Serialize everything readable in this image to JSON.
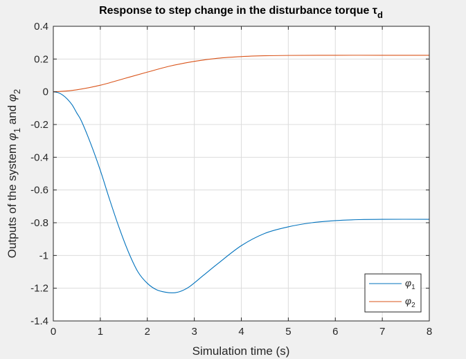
{
  "chart_data": {
    "type": "line",
    "title": "Response to step change in the disturbance torque τ",
    "title_subscript": "d",
    "xlabel": "Simulation time (s)",
    "ylabel_parts": [
      "Outputs of the system ",
      "φ",
      "1",
      " and ",
      "φ",
      "2"
    ],
    "xlim": [
      0,
      8
    ],
    "ylim": [
      -1.4,
      0.4
    ],
    "x_ticks": [
      0,
      1,
      2,
      3,
      4,
      5,
      6,
      7,
      8
    ],
    "y_ticks": [
      0.4,
      0.2,
      0,
      -0.2,
      -0.4,
      -0.6,
      -0.8,
      -1,
      -1.2,
      -1.4
    ],
    "y_tick_labels": [
      "0.4",
      "0.2",
      "0",
      "-0.2",
      "-0.4",
      "-0.6",
      "-0.8",
      "-1",
      "-1.2",
      "-1.4"
    ],
    "grid": true,
    "legend_position": "bottom-right",
    "series": [
      {
        "name": "φ",
        "subscript": "1",
        "color": "#0072BD",
        "x": [
          0,
          0.1,
          0.2,
          0.3,
          0.4,
          0.5,
          0.6,
          0.8,
          1.0,
          1.2,
          1.4,
          1.6,
          1.8,
          2.0,
          2.2,
          2.4,
          2.55,
          2.7,
          2.9,
          3.2,
          3.5,
          4.0,
          4.5,
          5.0,
          5.5,
          6.0,
          6.5,
          7.0,
          8.0
        ],
        "y": [
          0,
          -0.005,
          -0.02,
          -0.045,
          -0.08,
          -0.13,
          -0.18,
          -0.32,
          -0.48,
          -0.66,
          -0.83,
          -0.98,
          -1.1,
          -1.17,
          -1.21,
          -1.225,
          -1.228,
          -1.22,
          -1.19,
          -1.12,
          -1.05,
          -0.94,
          -0.865,
          -0.825,
          -0.8,
          -0.787,
          -0.781,
          -0.779,
          -0.779
        ]
      },
      {
        "name": "φ",
        "subscript": "2",
        "color": "#D95319",
        "x": [
          0,
          0.2,
          0.5,
          1.0,
          1.5,
          2.0,
          2.5,
          3.0,
          3.5,
          4.0,
          4.5,
          5.0,
          6.0,
          7.0,
          8.0
        ],
        "y": [
          0,
          0.003,
          0.012,
          0.04,
          0.08,
          0.12,
          0.158,
          0.186,
          0.205,
          0.215,
          0.22,
          0.222,
          0.223,
          0.223,
          0.223
        ]
      }
    ]
  }
}
